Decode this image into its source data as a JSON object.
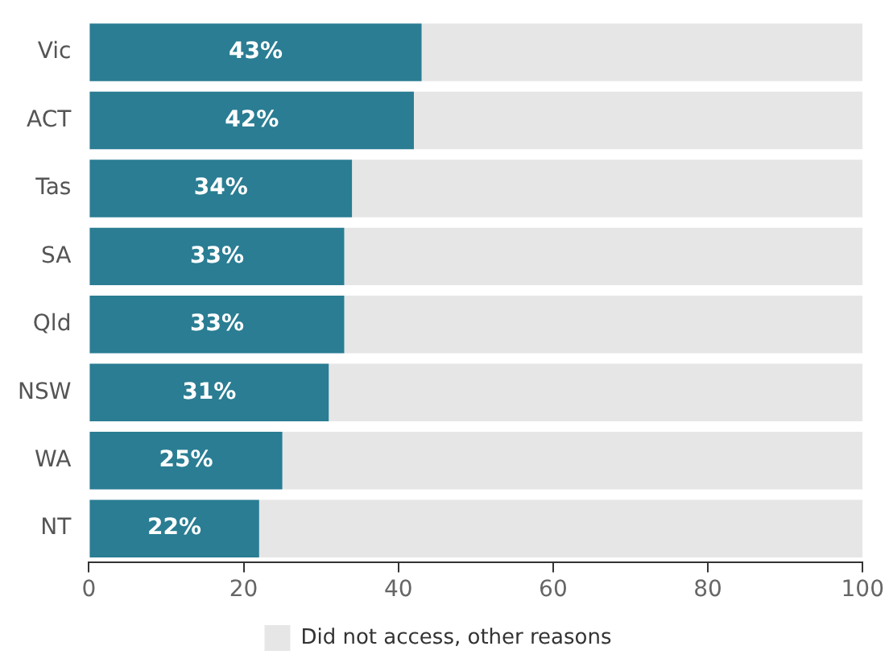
{
  "chart_data": {
    "type": "bar",
    "orientation": "horizontal",
    "stacked": true,
    "legend": "bottom",
    "grid": false,
    "categories": [
      "Vic",
      "ACT",
      "Tas",
      "SA",
      "Qld",
      "NSW",
      "WA",
      "NT"
    ],
    "series": [
      {
        "color": "#2a7d93",
        "values": [
          43,
          42,
          34,
          33,
          33,
          31,
          25,
          22
        ],
        "value_labels": [
          "43%",
          "42%",
          "34%",
          "33%",
          "33%",
          "31%",
          "25%",
          "22%"
        ]
      },
      {
        "name": "Did not access, other reasons",
        "color": "#e6e6e6",
        "values": [
          57,
          58,
          66,
          67,
          67,
          69,
          75,
          78
        ]
      }
    ],
    "xlim": [
      0,
      100
    ],
    "xticks": [
      0,
      20,
      40,
      60,
      80,
      100
    ]
  }
}
